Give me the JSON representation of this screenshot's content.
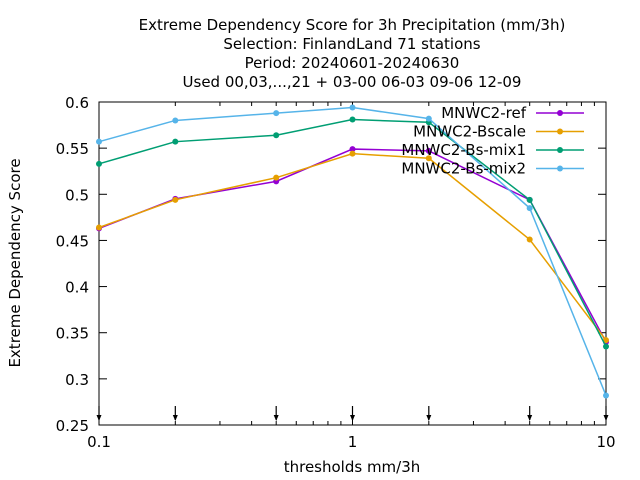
{
  "chart_data": {
    "type": "line",
    "title_lines": [
      "Extreme Dependency Score  for 3h Precipitation (mm/3h)",
      "Selection: FinlandLand     71 stations",
      "Period: 20240601-20240630",
      "Used 00,03,...,21 + 03-00 06-03 09-06 12-09"
    ],
    "xlabel": "thresholds mm/3h",
    "ylabel": "Extreme Dependency Score",
    "xscale": "log",
    "xlim": [
      0.1,
      10
    ],
    "ylim": [
      0.25,
      0.6
    ],
    "x_ticks": [
      0.1,
      1,
      10
    ],
    "x_tick_labels": [
      "0.1",
      "1",
      "10"
    ],
    "y_ticks": [
      0.25,
      0.3,
      0.35,
      0.4,
      0.45,
      0.5,
      0.55,
      0.6
    ],
    "y_tick_labels": [
      "0.25",
      "0.3",
      "0.35",
      "0.4",
      "0.45",
      "0.5",
      "0.55",
      "0.6"
    ],
    "threshold_markers": [
      0.1,
      0.2,
      0.5,
      1,
      2,
      5,
      10
    ],
    "legend_position": "top-right",
    "grid": false,
    "x": [
      0.1,
      0.2,
      0.5,
      1,
      2,
      5,
      10
    ],
    "series": [
      {
        "name": "MNWC2-ref",
        "color": "#9400d3",
        "values": [
          0.463,
          0.495,
          0.514,
          0.549,
          0.547,
          0.494,
          0.34
        ]
      },
      {
        "name": "MNWC2-Bscale",
        "color": "#e69f00",
        "values": [
          0.464,
          0.494,
          0.518,
          0.544,
          0.539,
          0.451,
          0.342
        ]
      },
      {
        "name": "MNWC2-Bs-mix1",
        "color": "#009e73",
        "values": [
          0.533,
          0.557,
          0.564,
          0.581,
          0.578,
          0.494,
          0.335
        ]
      },
      {
        "name": "MNWC2-Bs-mix2",
        "color": "#56b4e9",
        "values": [
          0.557,
          0.58,
          0.588,
          0.594,
          0.582,
          0.485,
          0.282
        ]
      }
    ]
  }
}
